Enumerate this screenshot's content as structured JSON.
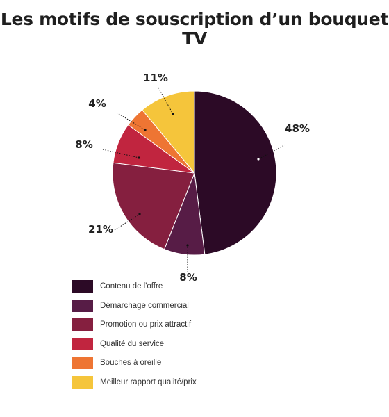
{
  "chart_data": {
    "type": "pie",
    "title": "Les motifs de souscription d’un bouquet TV",
    "title_lines": [
      "Les motifs de souscription d’un bouquet",
      "TV"
    ],
    "slices": [
      {
        "label": "Contenu de l'offre",
        "value": 48,
        "display": "48%",
        "color": "#2c0a26"
      },
      {
        "label": "Démarchage commercial",
        "value": 8,
        "display": "8%",
        "color": "#571c46"
      },
      {
        "label": "Promotion ou prix attractif",
        "value": 21,
        "display": "21%",
        "color": "#851f3f"
      },
      {
        "label": "Qualité du service",
        "value": 8,
        "display": "8%",
        "color": "#c1253f"
      },
      {
        "label": "Bouches à oreille",
        "value": 4,
        "display": "4%",
        "color": "#ee7533"
      },
      {
        "label": "Meilleur rapport qualité/prix",
        "value": 11,
        "display": "11%",
        "color": "#f5c53b"
      }
    ],
    "legend_position": "bottom-left"
  }
}
